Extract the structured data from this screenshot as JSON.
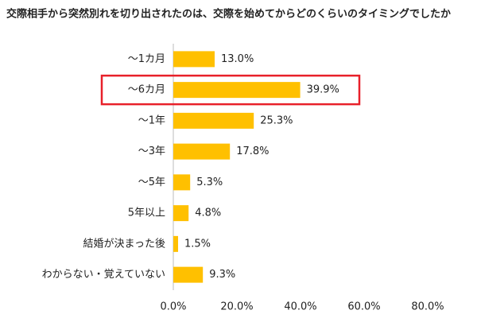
{
  "chart_data": {
    "type": "barh",
    "title": "交際相手から突然別れを切り出されたのは、交際を始めてからどのくらいのタイミングでしたか",
    "categories": [
      "～1カ月",
      "～6カ月",
      "～1年",
      "～3年",
      "～5年",
      "5年以上",
      "結婚が決まった後",
      "わからない・覚えていない"
    ],
    "values": [
      13.0,
      39.9,
      25.3,
      17.8,
      5.3,
      4.8,
      1.5,
      9.3
    ],
    "value_labels": [
      "13.0%",
      "39.9%",
      "25.3%",
      "17.8%",
      "5.3%",
      "4.8%",
      "1.5%",
      "9.3%"
    ],
    "color": "#ffc000",
    "highlight": 1,
    "highlight_color": "#e8202a",
    "xlim": [
      0,
      80
    ],
    "xticks": [
      {
        "value": 0,
        "label": "0.0%"
      },
      {
        "value": 20,
        "label": "20.0%"
      },
      {
        "value": 40,
        "label": "40.0%"
      },
      {
        "value": 60,
        "label": "60.0%"
      },
      {
        "value": 80,
        "label": "80.0%"
      }
    ]
  }
}
